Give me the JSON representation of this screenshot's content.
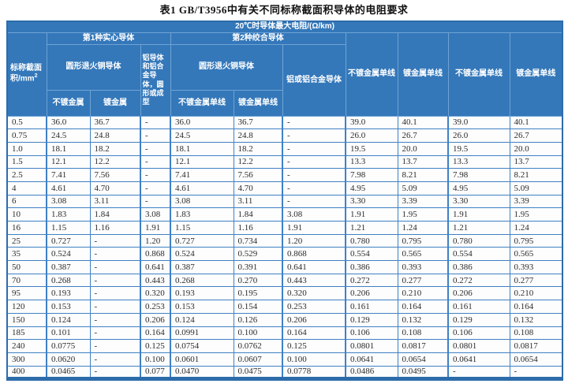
{
  "page": {
    "title": "表1  GB/T3956中有关不同标称截面积导体的电阻要求"
  },
  "colors": {
    "header_bg": "#3478ba",
    "header_text": "#ffffff",
    "data_border": "#3f81c4",
    "outer_border": "#2d6cab",
    "data_text": "#2b2b2b"
  },
  "table": {
    "unit_header": "20℃时导体最大电阻/(Ω/km)",
    "area_header": {
      "text": "标称截面积/mm",
      "sup": "2"
    },
    "group1": "第1种实心导体",
    "group2": "第2种绞合导体",
    "sub1_copper": "圆形退火铜导体",
    "sub1_alu": "铝导体和铝合金导体，圆形或成型",
    "sub2_copper": "圆形退火铜导体",
    "sub2_alu": "铝或铝合金导体",
    "leaf_bare": "不镀金属",
    "leaf_plated": "镀金属",
    "leaf_bare_wire": "不镀金属单线",
    "leaf_plated_wire": "镀金属单线",
    "col7_header": "不镀金属单线",
    "col8_header": "镀金属单线",
    "col9_header": "不镀金属单线",
    "col10_header": "镀金属单线",
    "rows": [
      [
        "0.5",
        "36.0",
        "36.7",
        "-",
        "36.0",
        "36.7",
        "-",
        "39.0",
        "40.1",
        "39.0",
        "40.1"
      ],
      [
        "0.75",
        "24.5",
        "24.8",
        "-",
        "24.5",
        "24.8",
        "-",
        "26.0",
        "26.7",
        "26.0",
        "26.7"
      ],
      [
        "1.0",
        "18.1",
        "18.2",
        "-",
        "18.1",
        "18.2",
        "-",
        "19.5",
        "20.0",
        "19.5",
        "20.0"
      ],
      [
        "1.5",
        "12.1",
        "12.2",
        "-",
        "12.1",
        "12.2",
        "-",
        "13.3",
        "13.7",
        "13.3",
        "13.7"
      ],
      [
        "2.5",
        "7.41",
        "7.56",
        "-",
        "7.41",
        "7.56",
        "-",
        "7.98",
        "8.21",
        "7.98",
        "8.21"
      ],
      [
        "4",
        "4.61",
        "4.70",
        "-",
        "4.61",
        "4.70",
        "-",
        "4.95",
        "5.09",
        "4.95",
        "5.09"
      ],
      [
        "6",
        "3.08",
        "3.11",
        "-",
        "3.08",
        "3.11",
        "-",
        "3.30",
        "3.39",
        "3.30",
        "3.39"
      ],
      [
        "10",
        "1.83",
        "1.84",
        "3.08",
        "1.83",
        "1.84",
        "3.08",
        "1.91",
        "1.95",
        "1.91",
        "1.95"
      ],
      [
        "16",
        "1.15",
        "1.16",
        "1.91",
        "1.15",
        "1.16",
        "1.91",
        "1.21",
        "1.24",
        "1.21",
        "1.24"
      ],
      [
        "25",
        "0.727",
        "-",
        "1.20",
        "0.727",
        "0.734",
        "1.20",
        "0.780",
        "0.795",
        "0.780",
        "0.795"
      ],
      [
        "35",
        "0.524",
        "-",
        "0.868",
        "0.524",
        "0.529",
        "0.868",
        "0.554",
        "0.565",
        "0.554",
        "0.565"
      ],
      [
        "50",
        "0.387",
        "-",
        "0.641",
        "0.387",
        "0.391",
        "0.641",
        "0.386",
        "0.393",
        "0.386",
        "0.393"
      ],
      [
        "70",
        "0.268",
        "-",
        "0.443",
        "0.268",
        "0.270",
        "0.443",
        "0.272",
        "0.277",
        "0.272",
        "0.277"
      ],
      [
        "95",
        "0.193",
        "-",
        "0.320",
        "0.193",
        "0.195",
        "0.320",
        "0.206",
        "0.210",
        "0.206",
        "0.210"
      ],
      [
        "120",
        "0.153",
        "-",
        "0.253",
        "0.153",
        "0.154",
        "0.253",
        "0.161",
        "0.164",
        "0.161",
        "0.164"
      ],
      [
        "150",
        "0.124",
        "-",
        "0.206",
        "0.124",
        "0.126",
        "0.206",
        "0.129",
        "0.132",
        "0.129",
        "0.132"
      ],
      [
        "185",
        "0.101",
        "-",
        "0.164",
        "0.0991",
        "0.100",
        "0.164",
        "0.106",
        "0.108",
        "0.106",
        "0.108"
      ],
      [
        "240",
        "0.0775",
        "-",
        "0.125",
        "0.0754",
        "0.0762",
        "0.125",
        "0.0801",
        "0.0817",
        "0.0801",
        "0.0817"
      ],
      [
        "300",
        "0.0620",
        "-",
        "0.100",
        "0.0601",
        "0.0607",
        "0.100",
        "0.0641",
        "0.0654",
        "0.0641",
        "0.0654"
      ],
      [
        "400",
        "0.0465",
        "-",
        "0.077",
        "0.0470",
        "0.0475",
        "0.0778",
        "0.0486",
        "0.0495",
        "-",
        "-"
      ]
    ]
  }
}
